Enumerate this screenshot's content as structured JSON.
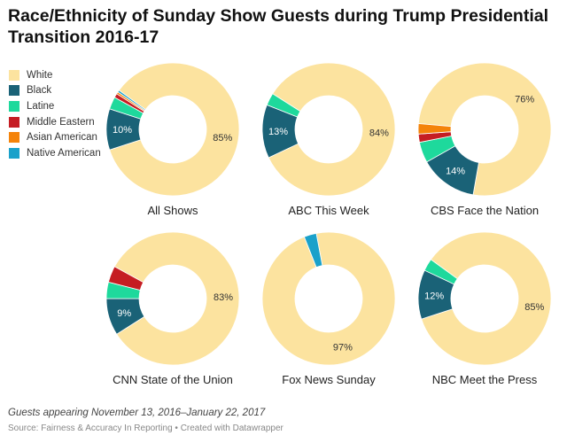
{
  "title": "Race/Ethnicity of Sunday Show Guests during Trump Presidential Transition 2016-17",
  "colors": {
    "White": "#fce39f",
    "Black": "#1a6277",
    "Latine": "#1ed99c",
    "Middle Eastern": "#c51d23",
    "Asian American": "#f4830a",
    "Native American": "#1aa1ca"
  },
  "legend": [
    "White",
    "Black",
    "Latine",
    "Middle Eastern",
    "Asian American",
    "Native American"
  ],
  "chart_data": [
    {
      "type": "pie",
      "title": "All Shows",
      "slices": [
        {
          "label": "White",
          "value": 85,
          "display": "85%"
        },
        {
          "label": "Black",
          "value": 10,
          "display": "10%"
        },
        {
          "label": "Latine",
          "value": 3,
          "display": ""
        },
        {
          "label": "Middle Eastern",
          "value": 1,
          "display": ""
        },
        {
          "label": "Asian American",
          "value": 0.5,
          "display": ""
        },
        {
          "label": "Native American",
          "value": 0.5,
          "display": ""
        }
      ]
    },
    {
      "type": "pie",
      "title": "ABC This Week",
      "slices": [
        {
          "label": "White",
          "value": 84,
          "display": "84%"
        },
        {
          "label": "Black",
          "value": 13,
          "display": "13%"
        },
        {
          "label": "Latine",
          "value": 3,
          "display": ""
        }
      ]
    },
    {
      "type": "pie",
      "title": "CBS Face the Nation",
      "slices": [
        {
          "label": "White",
          "value": 76,
          "display": "76%"
        },
        {
          "label": "Black",
          "value": 14,
          "display": "14%"
        },
        {
          "label": "Latine",
          "value": 5,
          "display": ""
        },
        {
          "label": "Middle Eastern",
          "value": 2,
          "display": ""
        },
        {
          "label": "Asian American",
          "value": 2.5,
          "display": ""
        }
      ]
    },
    {
      "type": "pie",
      "title": "CNN State of the Union",
      "slices": [
        {
          "label": "White",
          "value": 83,
          "display": "83%"
        },
        {
          "label": "Black",
          "value": 9,
          "display": "9%"
        },
        {
          "label": "Latine",
          "value": 4,
          "display": ""
        },
        {
          "label": "Middle Eastern",
          "value": 4,
          "display": ""
        }
      ]
    },
    {
      "type": "pie",
      "title": "Fox News Sunday",
      "slices": [
        {
          "label": "White",
          "value": 97,
          "display": "97%"
        },
        {
          "label": "Native American",
          "value": 3,
          "display": ""
        }
      ]
    },
    {
      "type": "pie",
      "title": "NBC Meet the Press",
      "slices": [
        {
          "label": "White",
          "value": 85,
          "display": "85%"
        },
        {
          "label": "Black",
          "value": 12,
          "display": "12%"
        },
        {
          "label": "Latine",
          "value": 3,
          "display": ""
        }
      ]
    }
  ],
  "footer": {
    "note": "Guests appearing November 13, 2016–January 22, 2017",
    "source": "Source: Fairness & Accuracy In Reporting • Created with Datawrapper"
  }
}
